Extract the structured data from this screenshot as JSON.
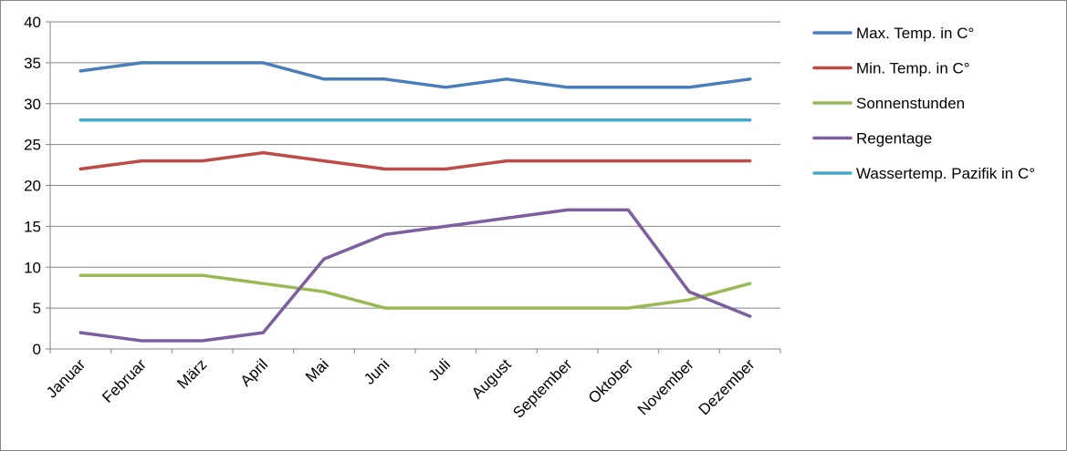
{
  "chart_data": {
    "type": "line",
    "categories": [
      "Januar",
      "Februar",
      "März",
      "April",
      "Mai",
      "Juni",
      "Juli",
      "August",
      "September",
      "Oktober",
      "November",
      "Dezember"
    ],
    "ylim": [
      0,
      40
    ],
    "yticks": [
      0,
      5,
      10,
      15,
      20,
      25,
      30,
      35,
      40
    ],
    "grid": true,
    "legend_position": "right",
    "series": [
      {
        "name": "Max. Temp. in C°",
        "color": "#4a7ebb",
        "values": [
          34,
          35,
          35,
          35,
          33,
          33,
          32,
          33,
          32,
          32,
          32,
          33
        ]
      },
      {
        "name": "Min. Temp. in C°",
        "color": "#be4b48",
        "values": [
          22,
          23,
          23,
          24,
          23,
          22,
          22,
          23,
          23,
          23,
          23,
          23
        ]
      },
      {
        "name": "Sonnenstunden",
        "color": "#98b954",
        "values": [
          9,
          9,
          9,
          8,
          7,
          5,
          5,
          5,
          5,
          5,
          6,
          8
        ]
      },
      {
        "name": "Regentage",
        "color": "#7d5fa0",
        "values": [
          2,
          1,
          1,
          2,
          11,
          14,
          15,
          16,
          17,
          17,
          7,
          4
        ]
      },
      {
        "name": "Wassertemp. Pazifik in C°",
        "color": "#46aac5",
        "values": [
          28,
          28,
          28,
          28,
          28,
          28,
          28,
          28,
          28,
          28,
          28,
          28
        ]
      }
    ]
  }
}
